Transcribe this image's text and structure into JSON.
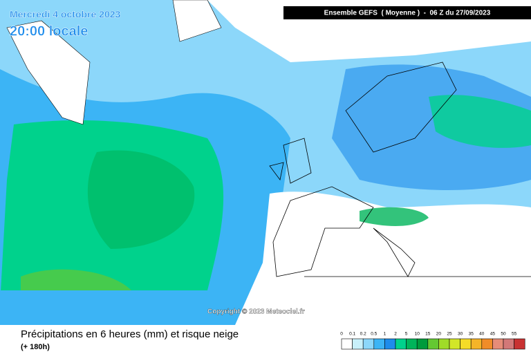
{
  "header": {
    "date": "Mercredi 4 octobre 2023",
    "time": "20:00 locale",
    "model": "Ensemble GEFS  ( Moyenne )  -  06 Z du 27/09/2023"
  },
  "copyright": "Copyright © 2023 Meteociel.fr",
  "footer": {
    "title": "Précipitations en 6 heures (mm) et risque neige",
    "lead": "(+ 180h)"
  },
  "legend": {
    "items": [
      {
        "value": 0,
        "color": "#ffffff"
      },
      {
        "value": 0.1,
        "color": "#c8f0fa"
      },
      {
        "value": 0.2,
        "color": "#8cd7fa"
      },
      {
        "value": 0.5,
        "color": "#3cb4f5"
      },
      {
        "value": 1,
        "color": "#1e8ceb"
      },
      {
        "value": 2,
        "color": "#00d28c"
      },
      {
        "value": 5,
        "color": "#00b45a"
      },
      {
        "value": 10,
        "color": "#009b3c"
      },
      {
        "value": 15,
        "color": "#64c832"
      },
      {
        "value": 20,
        "color": "#a0dc28"
      },
      {
        "value": 25,
        "color": "#d2e628"
      },
      {
        "value": 30,
        "color": "#f5dc28"
      },
      {
        "value": 35,
        "color": "#f5b428"
      },
      {
        "value": 40,
        "color": "#f08c28"
      },
      {
        "value": 45,
        "color": "#e68c78"
      },
      {
        "value": 50,
        "color": "#d27878"
      },
      {
        "value": 55,
        "color": "#c83232"
      }
    ]
  }
}
